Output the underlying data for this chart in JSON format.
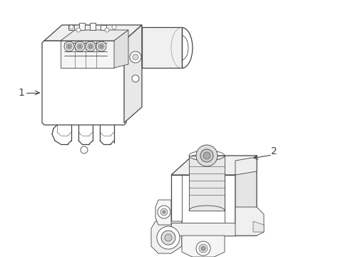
{
  "bg_color": "#ffffff",
  "line_color": "#444444",
  "label1": "1",
  "label2": "2",
  "figsize": [
    4.89,
    3.6
  ],
  "dpi": 100,
  "lw_main": 0.9,
  "lw_detail": 0.6,
  "lw_thin": 0.4
}
